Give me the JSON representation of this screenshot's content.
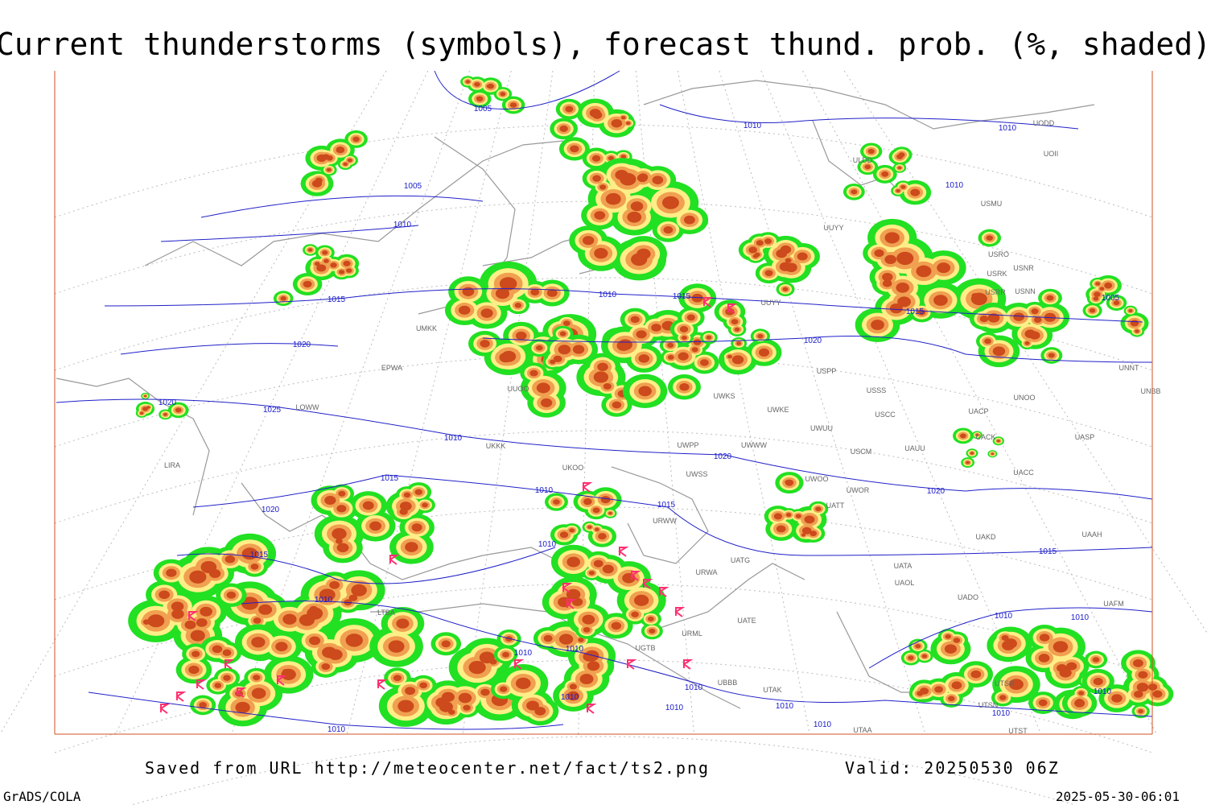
{
  "header": {
    "title": "Current thunderstorms (symbols), forecast thund. prob. (%, shaded)"
  },
  "map": {
    "isobar_labels": [
      "1005",
      "1010",
      "1010",
      "1005",
      "1010",
      "1010",
      "1015",
      "1010",
      "1015",
      "1005",
      "1015",
      "1020",
      "1020",
      "1020",
      "1025",
      "1010",
      "1020",
      "1015",
      "1010",
      "1020",
      "1020",
      "1015",
      "1010",
      "1015",
      "1015",
      "1010",
      "1010",
      "1010",
      "1010",
      "1010",
      "1010",
      "1010",
      "1010",
      "1010",
      "1010",
      "1010",
      "1010",
      "1010"
    ],
    "stations": [
      "UODD",
      "UOII",
      "ULDD",
      "USMU",
      "USRO",
      "USRK",
      "USNR",
      "USRR",
      "USNN",
      "UUYY",
      "UUYY",
      "UMKK",
      "EPWA",
      "USPP",
      "USSS",
      "UNOO",
      "UNNT",
      "UNBB",
      "UWKE",
      "UWKS",
      "USCC",
      "UACP",
      "UWUU",
      "UACK",
      "UASP",
      "USCM",
      "UAUU",
      "UWWW",
      "UWPP",
      "UWSS",
      "UWOO",
      "UWOR",
      "UATT",
      "UACC",
      "UAKD",
      "UAAH",
      "UATG",
      "UATA",
      "UAOL",
      "UADO",
      "LOWW",
      "LIRA",
      "UKKK",
      "UUOO",
      "UKOO",
      "UTAA",
      "UTST",
      "LTBA",
      "UGTB",
      "UBBB",
      "UATE",
      "URWW",
      "URWA",
      "URML",
      "UTAK",
      "UTSS",
      "UTSN",
      "UAFM"
    ]
  },
  "footer": {
    "source": "Saved from URL http://meteocenter.net/fact/ts2.png",
    "valid": "Valid: 20250530 06Z",
    "software": "GrADS/COLA",
    "timestamp": "2025-05-30-06:01"
  }
}
